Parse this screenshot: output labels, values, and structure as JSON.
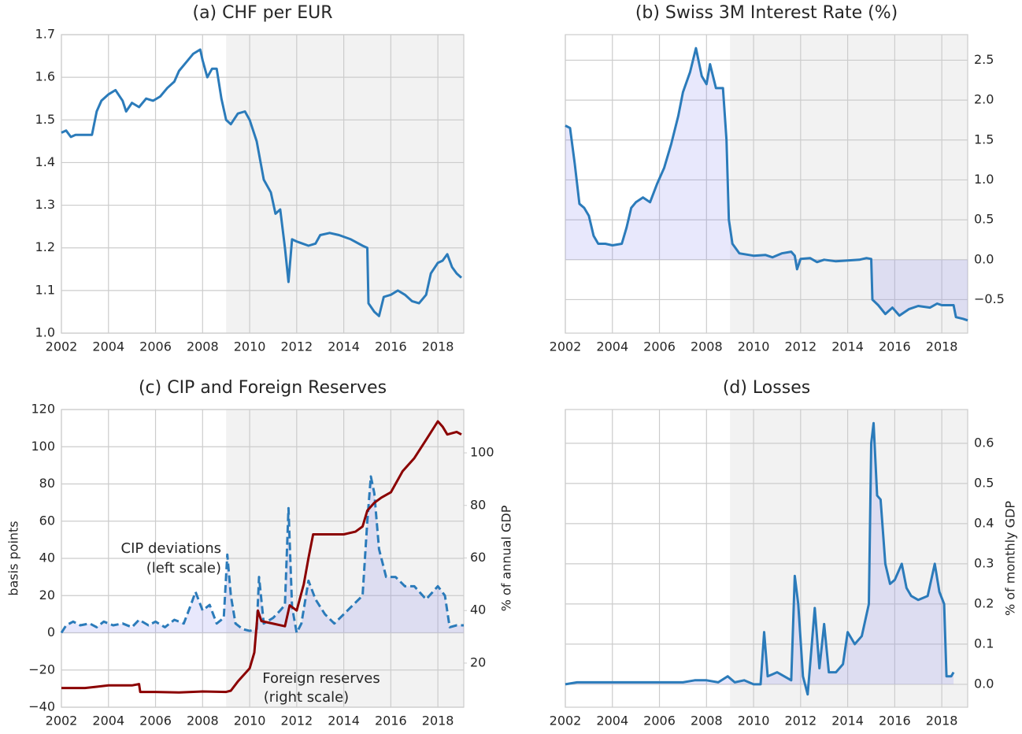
{
  "chart_data": [
    {
      "type": "line",
      "title": "(a) CHF per EUR",
      "xlim": [
        2002,
        2019.1
      ],
      "xticks": [
        2002,
        2004,
        2006,
        2008,
        2010,
        2012,
        2014,
        2016,
        2018
      ],
      "ylim": [
        1.0,
        1.7
      ],
      "yticks": [
        {
          "value": 1.0,
          "label": "1.0"
        },
        1.1,
        1.2,
        1.3,
        1.4,
        1.5,
        1.6,
        1.7
      ],
      "y_axis": "left",
      "grid": true,
      "shade_from": 2009,
      "shade_color": "#f2f2f2",
      "series": [
        {
          "color": "#2b7bba",
          "fill": false,
          "dashed": false,
          "x": [
            2002.0,
            2002.2,
            2002.4,
            2002.6,
            2002.8,
            2003.0,
            2003.3,
            2003.5,
            2003.7,
            2004.0,
            2004.3,
            2004.6,
            2004.75,
            2005.0,
            2005.3,
            2005.6,
            2005.9,
            2006.2,
            2006.5,
            2006.8,
            2007.0,
            2007.3,
            2007.6,
            2007.9,
            2008.0,
            2008.2,
            2008.4,
            2008.6,
            2008.8,
            2009.0,
            2009.2,
            2009.5,
            2009.8,
            2010.0,
            2010.3,
            2010.6,
            2010.9,
            2011.1,
            2011.3,
            2011.5,
            2011.65,
            2011.8,
            2012.0,
            2012.5,
            2012.8,
            2013.0,
            2013.4,
            2013.8,
            2014.3,
            2014.8,
            2015.0,
            2015.05,
            2015.3,
            2015.5,
            2015.7,
            2016.0,
            2016.3,
            2016.6,
            2016.9,
            2017.2,
            2017.5,
            2017.7,
            2018.0,
            2018.2,
            2018.4,
            2018.6,
            2018.8,
            2019.0
          ],
          "values": [
            1.47,
            1.475,
            1.46,
            1.465,
            1.465,
            1.465,
            1.465,
            1.52,
            1.545,
            1.56,
            1.57,
            1.545,
            1.52,
            1.54,
            1.53,
            1.55,
            1.545,
            1.555,
            1.575,
            1.59,
            1.615,
            1.635,
            1.655,
            1.665,
            1.64,
            1.6,
            1.62,
            1.62,
            1.55,
            1.5,
            1.49,
            1.515,
            1.52,
            1.5,
            1.45,
            1.36,
            1.33,
            1.28,
            1.29,
            1.2,
            1.12,
            1.22,
            1.215,
            1.205,
            1.21,
            1.23,
            1.235,
            1.23,
            1.22,
            1.205,
            1.2,
            1.07,
            1.05,
            1.04,
            1.085,
            1.09,
            1.1,
            1.09,
            1.075,
            1.07,
            1.09,
            1.14,
            1.165,
            1.17,
            1.185,
            1.155,
            1.14,
            1.13
          ]
        }
      ]
    },
    {
      "type": "line",
      "title": "(b) Swiss 3M Interest Rate (%)",
      "xlim": [
        2002,
        2019.1
      ],
      "xticks": [
        2002,
        2004,
        2006,
        2008,
        2010,
        2012,
        2014,
        2016,
        2018
      ],
      "ylim": [
        -0.92,
        2.82
      ],
      "yticks": [
        {
          "value": -0.5,
          "label": "−0.5"
        },
        {
          "value": 0,
          "label": "0.0"
        },
        0.5,
        {
          "value": 1,
          "label": "1.0"
        },
        1.5,
        {
          "value": 2,
          "label": "2.0"
        },
        2.5
      ],
      "y_axis": "right",
      "grid": true,
      "shade_from": 2009,
      "shade_color": "#f2f2f2",
      "series": [
        {
          "color": "#2b7bba",
          "fill": true,
          "fill_color": "rgba(110,110,235,0.16)",
          "dashed": false,
          "x": [
            2002.0,
            2002.2,
            2002.4,
            2002.6,
            2002.8,
            2003.0,
            2003.2,
            2003.4,
            2003.7,
            2004.0,
            2004.4,
            2004.6,
            2004.8,
            2005.0,
            2005.3,
            2005.6,
            2005.9,
            2006.2,
            2006.5,
            2006.8,
            2007.0,
            2007.3,
            2007.55,
            2007.8,
            2008.0,
            2008.15,
            2008.4,
            2008.7,
            2008.85,
            2008.95,
            2009.1,
            2009.4,
            2010.0,
            2010.5,
            2010.8,
            2011.2,
            2011.6,
            2011.75,
            2011.85,
            2012.0,
            2012.4,
            2012.7,
            2013.0,
            2013.5,
            2014.0,
            2014.5,
            2014.8,
            2015.0,
            2015.05,
            2015.3,
            2015.6,
            2015.9,
            2016.2,
            2016.6,
            2017.0,
            2017.5,
            2017.8,
            2018.0,
            2018.5,
            2018.6,
            2018.9,
            2019.1
          ],
          "values": [
            1.68,
            1.65,
            1.2,
            0.7,
            0.65,
            0.55,
            0.3,
            0.2,
            0.2,
            0.18,
            0.2,
            0.4,
            0.65,
            0.72,
            0.78,
            0.72,
            0.95,
            1.15,
            1.45,
            1.8,
            2.1,
            2.35,
            2.65,
            2.3,
            2.2,
            2.45,
            2.15,
            2.15,
            1.5,
            0.5,
            0.2,
            0.08,
            0.05,
            0.06,
            0.03,
            0.08,
            0.1,
            0.05,
            -0.12,
            0.01,
            0.02,
            -0.03,
            0.0,
            -0.02,
            -0.01,
            0.0,
            0.02,
            0.01,
            -0.5,
            -0.57,
            -0.68,
            -0.6,
            -0.7,
            -0.62,
            -0.58,
            -0.6,
            -0.55,
            -0.57,
            -0.57,
            -0.72,
            -0.74,
            -0.76
          ]
        }
      ]
    },
    {
      "type": "line",
      "title": "(c) CIP and Foreign Reserves",
      "xlim": [
        2002,
        2019.1
      ],
      "xticks": [
        2002,
        2004,
        2006,
        2008,
        2010,
        2012,
        2014,
        2016,
        2018
      ],
      "ylim": [
        -40,
        120
      ],
      "yticks": [
        {
          "value": -40,
          "label": "−40"
        },
        {
          "value": -20,
          "label": "−20"
        },
        0,
        20,
        40,
        60,
        80,
        100,
        120
      ],
      "y_axis": "left",
      "y2lim": [
        3.2,
        116.5
      ],
      "y2ticks": [
        20,
        40,
        60,
        80,
        100
      ],
      "ylabel": "basis points",
      "y2label": "% of annual GDP",
      "grid": true,
      "shade_from": 2009,
      "shade_color": "#f2f2f2",
      "annotations": [
        "CIP deviations",
        "(left scale)",
        "Foreign reserves",
        "(right scale)"
      ],
      "series": [
        {
          "color": "#2b7bba",
          "fill": true,
          "fill_color": "rgba(110,110,235,0.16)",
          "dashed": true,
          "x": [
            2002.0,
            2002.2,
            2002.5,
            2002.8,
            2003.2,
            2003.5,
            2003.8,
            2004.2,
            2004.6,
            2005.0,
            2005.3,
            2005.7,
            2006.0,
            2006.4,
            2006.8,
            2007.2,
            2007.5,
            2007.7,
            2008.0,
            2008.3,
            2008.6,
            2008.9,
            2009.05,
            2009.2,
            2009.4,
            2009.7,
            2010.0,
            2010.3,
            2010.4,
            2010.6,
            2011.0,
            2011.3,
            2011.5,
            2011.65,
            2011.8,
            2012.0,
            2012.2,
            2012.5,
            2012.8,
            2013.2,
            2013.6,
            2014.0,
            2014.4,
            2014.8,
            2015.0,
            2015.15,
            2015.3,
            2015.5,
            2015.8,
            2016.2,
            2016.6,
            2017.0,
            2017.5,
            2018.0,
            2018.3,
            2018.5,
            2018.8,
            2019.1
          ],
          "values": [
            0,
            4,
            6,
            4,
            5,
            3,
            6,
            4,
            5,
            3,
            7,
            4,
            6,
            3,
            7,
            5,
            15,
            22,
            12,
            15,
            5,
            8,
            42,
            20,
            5,
            2,
            1,
            2,
            30,
            5,
            8,
            12,
            15,
            67,
            14,
            0,
            5,
            28,
            18,
            10,
            5,
            10,
            15,
            20,
            60,
            84,
            75,
            45,
            30,
            30,
            25,
            25,
            18,
            25,
            20,
            3,
            4,
            4
          ]
        },
        {
          "color": "#8b0000",
          "fill": false,
          "dashed": false,
          "axis": "y2",
          "x": [
            2002.0,
            2003.0,
            2003.5,
            2004.0,
            2005.0,
            2005.3,
            2005.35,
            2006.0,
            2007.0,
            2008.0,
            2009.0,
            2009.2,
            2009.5,
            2010.0,
            2010.2,
            2010.35,
            2010.5,
            2011.0,
            2011.5,
            2011.6,
            2011.7,
            2012.0,
            2012.3,
            2012.5,
            2012.7,
            2013.0,
            2014.0,
            2014.5,
            2014.8,
            2015.0,
            2015.3,
            2015.6,
            2016.0,
            2016.5,
            2017.0,
            2017.5,
            2018.0,
            2018.2,
            2018.4,
            2018.8,
            2019.0
          ],
          "values": [
            10.5,
            10.5,
            11,
            11.5,
            11.5,
            12,
            9,
            9,
            8.8,
            9.2,
            9,
            9.5,
            13,
            18,
            24,
            40,
            36,
            35,
            34,
            38,
            42,
            40,
            50,
            60,
            69,
            69,
            69,
            70,
            72,
            78,
            81,
            83,
            85,
            93,
            98,
            105,
            112,
            110,
            107,
            108,
            107
          ]
        }
      ]
    },
    {
      "type": "line",
      "title": "(d) Losses",
      "xlim": [
        2002,
        2019.1
      ],
      "xticks": [
        2002,
        2004,
        2006,
        2008,
        2010,
        2012,
        2014,
        2016,
        2018
      ],
      "ylim": [
        -0.057,
        0.684
      ],
      "yticks": [
        {
          "value": 0,
          "label": "0.0"
        },
        0.1,
        0.2,
        0.3,
        0.4,
        0.5,
        0.6
      ],
      "y_axis": "right",
      "y2label": "% of monthly GDP",
      "grid": true,
      "shade_from": 2009,
      "shade_color": "#f2f2f2",
      "series": [
        {
          "color": "#2b7bba",
          "fill": true,
          "fill_color": "rgba(110,110,235,0.16)",
          "dashed": false,
          "x": [
            2002.0,
            2002.5,
            2003.0,
            2004.0,
            2005.0,
            2006.0,
            2007.0,
            2007.5,
            2008.0,
            2008.5,
            2008.9,
            2009.2,
            2009.6,
            2010.0,
            2010.3,
            2010.45,
            2010.6,
            2010.8,
            2011.0,
            2011.3,
            2011.6,
            2011.75,
            2011.9,
            2012.1,
            2012.3,
            2012.6,
            2012.8,
            2013.0,
            2013.2,
            2013.5,
            2013.8,
            2014.0,
            2014.3,
            2014.6,
            2014.9,
            2015.0,
            2015.1,
            2015.25,
            2015.4,
            2015.6,
            2015.8,
            2016.0,
            2016.3,
            2016.5,
            2016.7,
            2017.0,
            2017.4,
            2017.7,
            2017.9,
            2018.1,
            2018.2,
            2018.4,
            2018.5
          ],
          "values": [
            0.0,
            0.005,
            0.005,
            0.005,
            0.005,
            0.005,
            0.005,
            0.01,
            0.01,
            0.005,
            0.02,
            0.005,
            0.01,
            0.0,
            0.0,
            0.13,
            0.02,
            0.025,
            0.03,
            0.02,
            0.01,
            0.27,
            0.2,
            0.02,
            -0.025,
            0.19,
            0.04,
            0.15,
            0.03,
            0.03,
            0.05,
            0.13,
            0.1,
            0.12,
            0.2,
            0.6,
            0.65,
            0.47,
            0.46,
            0.3,
            0.25,
            0.26,
            0.3,
            0.24,
            0.22,
            0.21,
            0.22,
            0.3,
            0.23,
            0.2,
            0.02,
            0.02,
            0.03
          ]
        }
      ]
    }
  ]
}
